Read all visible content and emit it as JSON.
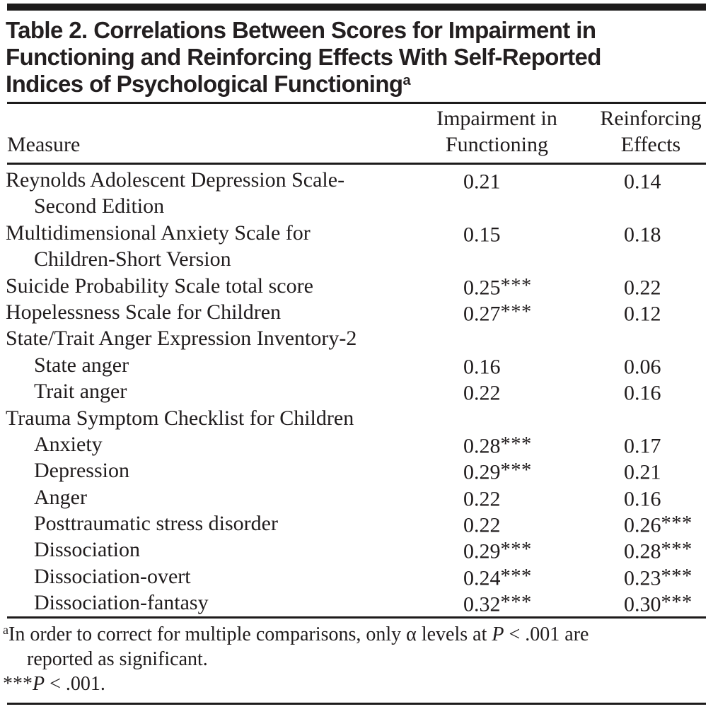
{
  "title": {
    "line1": "Table 2. Correlations Between Scores for Impairment in",
    "line2": "Functioning and Reinforcing Effects With Self-Reported",
    "line3": "Indices of Psychological Functioning",
    "sup": "a"
  },
  "table": {
    "measure_header": "Measure",
    "col1_header": [
      "Impairment in",
      "Functioning"
    ],
    "col2_header": [
      "Reinforcing",
      "Effects"
    ],
    "rows": [
      {
        "label": "Reynolds Adolescent Depression Scale-",
        "v1": "0.21",
        "v1s": "",
        "v2": "0.14",
        "v2s": ""
      },
      {
        "label": "Second Edition",
        "v1": "",
        "v1s": "",
        "v2": "",
        "v2s": ""
      },
      {
        "label": "Multidimensional Anxiety Scale for",
        "v1": "0.15",
        "v1s": "",
        "v2": "0.18",
        "v2s": ""
      },
      {
        "label": "Children-Short Version",
        "v1": "",
        "v1s": "",
        "v2": "",
        "v2s": ""
      },
      {
        "label": "Suicide Probability Scale total score",
        "v1": "0.25",
        "v1s": "***",
        "v2": "0.22",
        "v2s": ""
      },
      {
        "label": "Hopelessness Scale for Children",
        "v1": "0.27",
        "v1s": "***",
        "v2": "0.12",
        "v2s": ""
      },
      {
        "label": "State/Trait Anger Expression Inventory-2",
        "v1": "",
        "v1s": "",
        "v2": "",
        "v2s": ""
      },
      {
        "label": "State anger",
        "v1": "0.16",
        "v1s": "",
        "v2": "0.06",
        "v2s": ""
      },
      {
        "label": "Trait anger",
        "v1": "0.22",
        "v1s": "",
        "v2": "0.16",
        "v2s": ""
      },
      {
        "label": "Trauma Symptom Checklist for Children",
        "v1": "",
        "v1s": "",
        "v2": "",
        "v2s": ""
      },
      {
        "label": "Anxiety",
        "v1": "0.28",
        "v1s": "***",
        "v2": "0.17",
        "v2s": ""
      },
      {
        "label": "Depression",
        "v1": "0.29",
        "v1s": "***",
        "v2": "0.21",
        "v2s": ""
      },
      {
        "label": "Anger",
        "v1": "0.22",
        "v1s": "",
        "v2": "0.16",
        "v2s": ""
      },
      {
        "label": "Posttraumatic stress disorder",
        "v1": "0.22",
        "v1s": "",
        "v2": "0.26",
        "v2s": "***"
      },
      {
        "label": "Dissociation",
        "v1": "0.29",
        "v1s": "***",
        "v2": "0.28",
        "v2s": "***"
      },
      {
        "label": "Dissociation-overt",
        "v1": "0.24",
        "v1s": "***",
        "v2": "0.23",
        "v2s": "***"
      },
      {
        "label": "Dissociation-fantasy",
        "v1": "0.32",
        "v1s": "***",
        "v2": "0.30",
        "v2s": "***"
      }
    ]
  },
  "footnotes": {
    "marker": "a",
    "fn1_pre": "In order to correct for multiple comparisons, only α levels at ",
    "fn1_p": "P",
    "fn1_post": " < .001 are",
    "fn1_line2": "reported as significant.",
    "fn2_stars": "***",
    "fn2_p": "P",
    "fn2_post": " < .001."
  },
  "colors": {
    "text": "#201c1d",
    "rule": "#1d1b1b",
    "background": "#ffffff"
  }
}
